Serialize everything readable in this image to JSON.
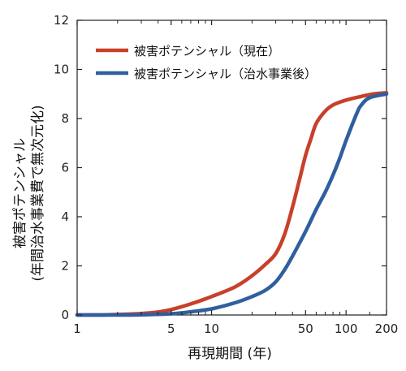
{
  "chart_data": {
    "type": "line",
    "xscale": "log",
    "xlim": [
      1,
      200
    ],
    "ylim": [
      0,
      12
    ],
    "xticks": [
      1,
      5,
      10,
      50,
      100,
      200
    ],
    "xtick_labels": [
      "1",
      "5",
      "10",
      "50",
      "100",
      "200"
    ],
    "yticks": [
      0,
      2,
      4,
      6,
      8,
      10,
      12
    ],
    "ytick_labels": [
      "0",
      "2",
      "4",
      "6",
      "8",
      "10",
      "12"
    ],
    "xlabel": "再現期間 (年)",
    "ylabel_line1": "被害ポテンシャル",
    "ylabel_line2": "(年間治水事業費で無次元化)",
    "grid": false,
    "legend_position": "top-left",
    "series": [
      {
        "name": "被害ポテンシャル（現在）",
        "color": "#c8402a",
        "x": [
          1,
          1.5,
          2,
          3,
          4,
          5,
          7,
          10,
          15,
          20,
          25,
          30,
          35,
          40,
          45,
          50,
          55,
          60,
          70,
          80,
          100,
          130,
          160,
          200
        ],
        "y": [
          0.0,
          0.0,
          0.02,
          0.06,
          0.12,
          0.22,
          0.45,
          0.75,
          1.15,
          1.6,
          2.05,
          2.5,
          3.3,
          4.4,
          5.5,
          6.5,
          7.2,
          7.8,
          8.3,
          8.55,
          8.75,
          8.9,
          9.0,
          9.05
        ]
      },
      {
        "name": "被害ポテンシャル（治水事業後）",
        "color": "#2f5f9f",
        "x": [
          1,
          2,
          3,
          5,
          7,
          10,
          15,
          20,
          25,
          30,
          35,
          40,
          50,
          60,
          70,
          80,
          90,
          100,
          120,
          130,
          150,
          200
        ],
        "y": [
          0.0,
          0.0,
          0.01,
          0.05,
          0.13,
          0.25,
          0.5,
          0.75,
          1.0,
          1.35,
          1.85,
          2.4,
          3.4,
          4.3,
          5.0,
          5.7,
          6.4,
          7.1,
          8.2,
          8.55,
          8.85,
          9.0
        ]
      }
    ]
  }
}
